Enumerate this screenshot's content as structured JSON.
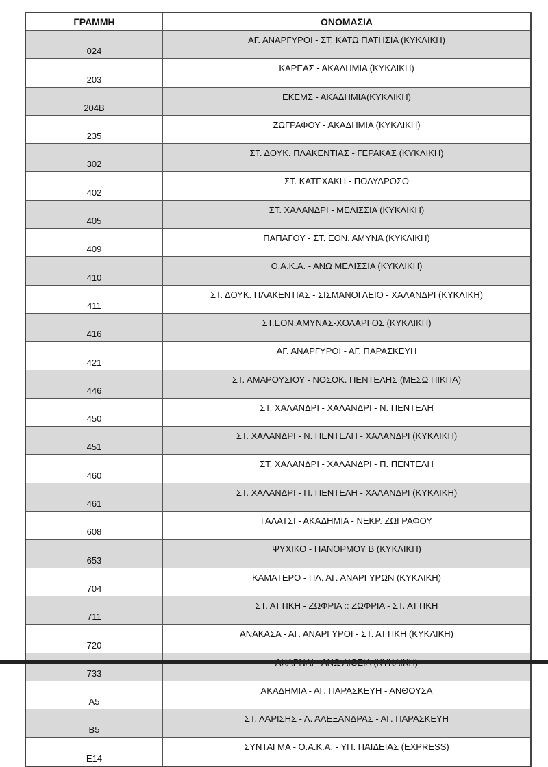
{
  "table": {
    "headers": [
      "ΓΡΑΜΜΗ",
      "ΟΝΟΜΑΣΙΑ"
    ],
    "rows": [
      {
        "code": "024",
        "name": "ΑΓ. ΑΝΑΡΓΥΡΟΙ - ΣΤ. ΚΑΤΩ ΠΑΤΗΣΙΑ (ΚΥΚΛΙΚΗ)"
      },
      {
        "code": "203",
        "name": "ΚΑΡΕΑΣ - ΑΚΑΔΗΜΙΑ (ΚΥΚΛΙΚΗ)"
      },
      {
        "code": "204Β",
        "name": "ΕΚΕΜΣ - ΑΚΑΔΗΜΙΑ(ΚΥΚΛΙΚΗ)"
      },
      {
        "code": "235",
        "name": "ΖΩΓΡΑΦΟΥ - ΑΚΑΔΗΜΙΑ (ΚΥΚΛΙΚΗ)"
      },
      {
        "code": "302",
        "name": "ΣΤ. ΔΟΥΚ. ΠΛΑΚΕΝΤΙΑΣ - ΓΕΡΑΚΑΣ (ΚΥΚΛΙΚΗ)"
      },
      {
        "code": "402",
        "name": "ΣΤ. ΚΑΤΕΧΑΚΗ - ΠΟΛΥΔΡΟΣΟ"
      },
      {
        "code": "405",
        "name": "ΣΤ. ΧΑΛΑΝΔΡΙ - ΜΕΛΙΣΣΙΑ (ΚΥΚΛΙΚΗ)"
      },
      {
        "code": "409",
        "name": "ΠΑΠΑΓΟΥ - ΣΤ. ΕΘΝ. ΑΜΥΝΑ  (ΚΥΚΛΙΚΗ)"
      },
      {
        "code": "410",
        "name": "Ο.Α.Κ.Α. - ΑΝΩ ΜΕΛΙΣΣΙΑ (ΚΥΚΛΙΚΗ)"
      },
      {
        "code": "411",
        "name": "ΣΤ. ΔΟΥΚ. ΠΛΑΚΕΝΤΙΑΣ - ΣΙΣΜΑΝΟΓΛΕΙΟ - ΧΑΛΑΝΔΡΙ (ΚΥΚΛΙΚΗ)"
      },
      {
        "code": "416",
        "name": "ΣΤ.ΕΘΝ.ΑΜΥΝΑΣ-ΧΟΛΑΡΓΟΣ (ΚΥΚΛΙΚΗ)"
      },
      {
        "code": "421",
        "name": "ΑΓ. ΑΝΑΡΓΥΡΟΙ - ΑΓ. ΠΑΡΑΣΚΕΥΗ"
      },
      {
        "code": "446",
        "name": "ΣΤ. ΑΜΑΡΟΥΣΙΟΥ - ΝΟΣΟΚ. ΠΕΝΤΕΛΗΣ (ΜΕΣΩ ΠΙΚΠΑ)"
      },
      {
        "code": "450",
        "name": "ΣΤ. ΧΑΛΑΝΔΡΙ - ΧΑΛΑΝΔΡΙ - Ν. ΠΕΝΤΕΛΗ"
      },
      {
        "code": "451",
        "name": "ΣΤ. ΧΑΛΑΝΔΡΙ - Ν. ΠΕΝΤΕΛΗ - ΧΑΛΑΝΔΡΙ (ΚΥΚΛΙΚΗ)"
      },
      {
        "code": "460",
        "name": "ΣΤ. ΧΑΛΑΝΔΡΙ - ΧΑΛΑΝΔΡΙ - Π. ΠΕΝΤΕΛΗ"
      },
      {
        "code": "461",
        "name": "ΣΤ. ΧΑΛΑΝΔΡΙ - Π. ΠΕΝΤΕΛΗ - ΧΑΛΑΝΔΡΙ (ΚΥΚΛΙΚΗ)"
      },
      {
        "code": "608",
        "name": "ΓΑΛΑΤΣΙ - ΑΚΑΔΗΜΙΑ - ΝΕΚΡ. ΖΩΓΡΑΦΟΥ"
      },
      {
        "code": "653",
        "name": "ΨΥΧΙΚΟ - ΠΑΝΟΡΜΟΥ Β (ΚΥΚΛΙΚΗ)"
      },
      {
        "code": "704",
        "name": "ΚΑΜΑΤΕΡΟ - ΠΛ. ΑΓ. ΑΝΑΡΓΥΡΩΝ (ΚΥΚΛΙΚΗ)"
      },
      {
        "code": "711",
        "name": "ΣΤ. ΑΤΤΙΚΗ - ΖΩΦΡΙΑ :: ΖΩΦΡΙΑ - ΣΤ. ΑΤΤΙΚΗ"
      },
      {
        "code": "720",
        "name": "ΑΝΑΚΑΣΑ - ΑΓ. ΑΝΑΡΓΥΡΟΙ - ΣΤ. ΑΤΤΙΚΗ (ΚΥΚΛΙΚΗ)"
      },
      {
        "code": "733",
        "name": "ΑΧΑΡΝΑΙ - ΑΝΩ ΛΙΟΣΙΑ (ΚΥΚΛΙΚΗ)"
      },
      {
        "code": "Α5",
        "name": "ΑΚΑΔΗΜΙΑ - ΑΓ. ΠΑΡΑΣΚΕΥΗ - ΑΝΘΟΥΣΑ"
      },
      {
        "code": "Β5",
        "name": "ΣΤ. ΛΑΡΙΣΗΣ - Λ. ΑΛΕΞΑΝΔΡΑΣ - ΑΓ. ΠΑΡΑΣΚΕΥΗ"
      },
      {
        "code": "Ε14",
        "name": "ΣΥΝΤΑΓΜΑ - Ο.Α.Κ.Α. - ΥΠ. ΠΑΙΔΕΙΑΣ (EXPRESS)"
      }
    ]
  },
  "colors": {
    "row_shade": "#d9d9d9",
    "border": "#555555"
  }
}
